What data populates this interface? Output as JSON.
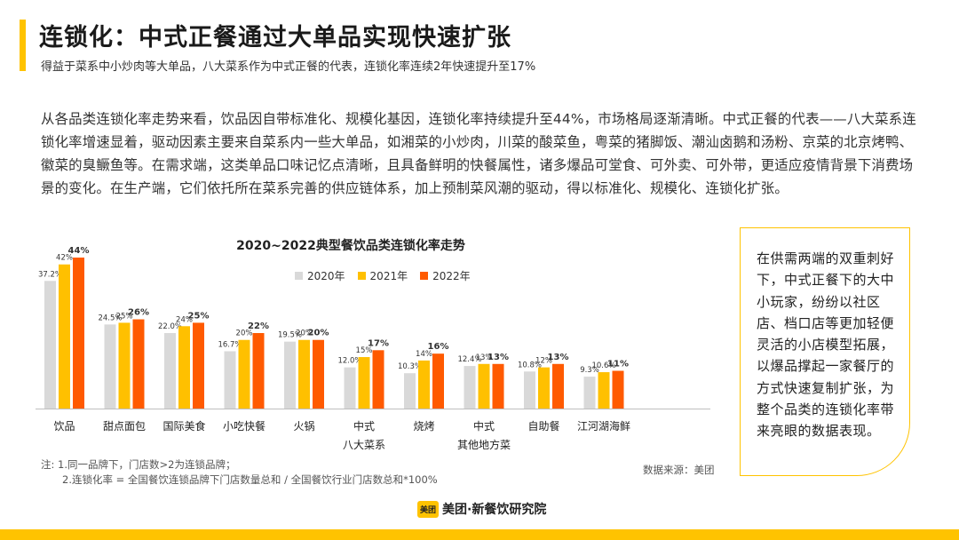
{
  "header": {
    "title": "连锁化：中式正餐通过大单品实现快速扩张",
    "subtitle": "得益于菜系中小炒肉等大单品，八大菜系作为中式正餐的代表，连锁化率连续2年快速提升至17%"
  },
  "paragraph": "从各品类连锁化率走势来看，饮品因自带标准化、规模化基因，连锁化率持续提升至44%，市场格局逐渐清晰。中式正餐的代表——八大菜系连锁化率增速显着，驱动因素主要来自菜系内一些大单品，如湘菜的小炒肉，川菜的酸菜鱼，粤菜的猪脚饭、潮汕卤鹅和汤粉、京菜的北京烤鸭、徽菜的臭鳜鱼等。在需求端，这类单品口味记忆点清晰，且具备鲜明的快餐属性，诸多爆品可堂食、可外卖、可外带，更适应疫情背景下消费场景的变化。在生产端，它们依托所在菜系完善的供应链体系，加上预制菜风潮的驱动，得以标准化、规模化、连锁化扩张。",
  "chart_data": {
    "type": "bar",
    "title": "2020~2022典型餐饮品类连锁化率走势",
    "categories": [
      [
        "饮品"
      ],
      [
        "甜点面包"
      ],
      [
        "国际美食"
      ],
      [
        "小吃快餐"
      ],
      [
        "火锅"
      ],
      [
        "中式",
        "八大菜系"
      ],
      [
        "烧烤"
      ],
      [
        "中式",
        "其他地方菜"
      ],
      [
        "自助餐"
      ],
      [
        "江河湖海鲜"
      ]
    ],
    "series": [
      {
        "name": "2020年",
        "color": "#D9D9D9",
        "values": [
          37.2,
          24.5,
          22.0,
          16.7,
          19.5,
          12.0,
          10.3,
          12.4,
          10.8,
          9.3
        ],
        "labels": [
          "37.2%",
          "24.5%",
          "22.0%",
          "16.7%",
          "19.5%",
          "12.0%",
          "10.3%",
          "12.4%",
          "10.8%",
          "9.3%"
        ]
      },
      {
        "name": "2021年",
        "color": "#FFC000",
        "values": [
          42,
          25,
          24,
          20,
          20,
          15,
          14,
          13,
          12,
          10.6
        ],
        "labels": [
          "42%",
          "25%",
          "24%",
          "20%",
          "20%",
          "15%",
          "14%",
          "13%",
          "12%",
          "10.6%"
        ]
      },
      {
        "name": "2022年",
        "color": "#FF5A00",
        "values": [
          44,
          26,
          25,
          22,
          20,
          17,
          16,
          13,
          13,
          11
        ],
        "labels": [
          "44%",
          "26%",
          "25%",
          "22%",
          "20%",
          "17%",
          "16%",
          "13%",
          "13%",
          "11%"
        ]
      }
    ],
    "ylim": [
      0,
      44
    ],
    "xlabel": "",
    "ylabel": "",
    "legend": "top-center"
  },
  "notes": {
    "line1": "注:   1.同一品牌下，门店数>2为连锁品牌；",
    "line2": "2.连锁化率 = 全国餐饮连锁品牌下门店数量总和 / 全国餐饮行业门店数总和*100%"
  },
  "source": "数据来源：美团",
  "side_box_text": "在供需两端的双重刺好下，中式正餐下的大中小玩家，纷纷以社区店、档口店等更加轻便灵活的小店模型拓展，以爆品撑起一家餐厅的方式快速复制扩张，为整个品类的连锁化率带来亮眼的数据表现。",
  "brand": {
    "logo": "美团",
    "name": "美团·新餐饮研究院"
  },
  "colors": {
    "accent": "#FFC300"
  }
}
